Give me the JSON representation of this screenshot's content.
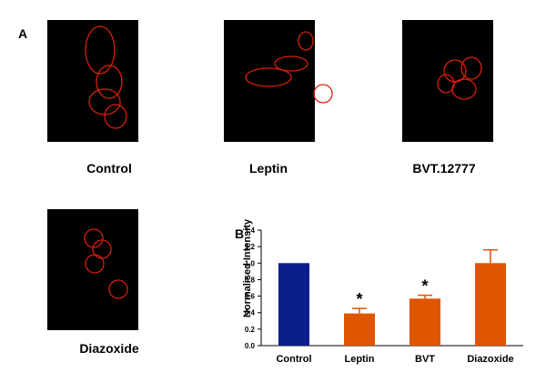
{
  "panel_a_label": "A",
  "panel_b_label": "B",
  "images": [
    {
      "caption": "Control"
    },
    {
      "caption": "Leptin"
    },
    {
      "caption": "BVT.12777"
    },
    {
      "caption": "Diazoxide"
    }
  ],
  "chart_data": {
    "type": "bar",
    "ylabel": "Normalised Intensity",
    "categories": [
      "Control",
      "Leptin",
      "BVT",
      "Diazoxide"
    ],
    "values": [
      1.0,
      0.39,
      0.57,
      1.0
    ],
    "errors": [
      0,
      0.06,
      0.04,
      0.16
    ],
    "colors": [
      "#0b1f8c",
      "#e05500",
      "#e05500",
      "#e05500"
    ],
    "significance": [
      null,
      "*",
      "*",
      null
    ],
    "ylim": [
      0,
      1.4
    ],
    "yticks": [
      {
        "value": 0,
        "label": "0.0"
      },
      0.2,
      0.4,
      0.6,
      0.8,
      {
        "value": 1,
        "label": "1.0"
      },
      1.2,
      1.4
    ]
  }
}
